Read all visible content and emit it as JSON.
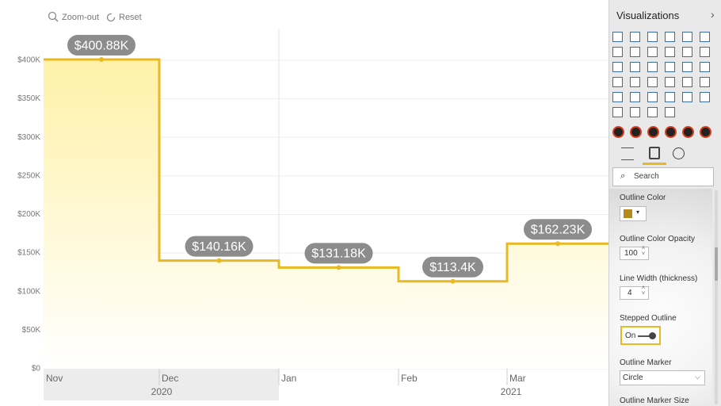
{
  "chart_data": {
    "type": "stepped-area",
    "categories": [
      "Nov",
      "Dec",
      "Jan",
      "Feb",
      "Mar"
    ],
    "years": [
      "2020",
      "2021"
    ],
    "values": [
      400880,
      140160,
      131180,
      113400,
      162230
    ],
    "value_labels": [
      "$400.88K",
      "$140.16K",
      "$131.18K",
      "$113.4K",
      "$162.23K"
    ],
    "color": "#e8b923",
    "ylim": [
      0,
      440000
    ],
    "yticks": [
      {
        "value": 0,
        "label": "$0"
      },
      {
        "value": 50000,
        "label": "$50K"
      },
      {
        "value": 100000,
        "label": "$100K"
      },
      {
        "value": 150000,
        "label": "$150K"
      },
      {
        "value": 200000,
        "label": "$200K"
      },
      {
        "value": 250000,
        "label": "$250K"
      },
      {
        "value": 300000,
        "label": "$300K"
      },
      {
        "value": 350000,
        "label": "$350K"
      },
      {
        "value": 400000,
        "label": "$400K"
      }
    ],
    "grid": true
  },
  "toolbar": {
    "zoom_out": "Zoom-out",
    "reset": "Reset"
  },
  "panel": {
    "title": "Visualizations",
    "search": "Search",
    "outline_color": "Outline Color",
    "outline_color_opacity": "Outline Color Opacity",
    "opacity_value": "100",
    "line_width": "Line Width (thickness)",
    "line_width_value": "4",
    "stepped_outline": "Stepped Outline",
    "stepped_value": "On",
    "outline_marker": "Outline Marker",
    "marker_value": "Circle",
    "outline_marker_size": "Outline Marker Size"
  }
}
